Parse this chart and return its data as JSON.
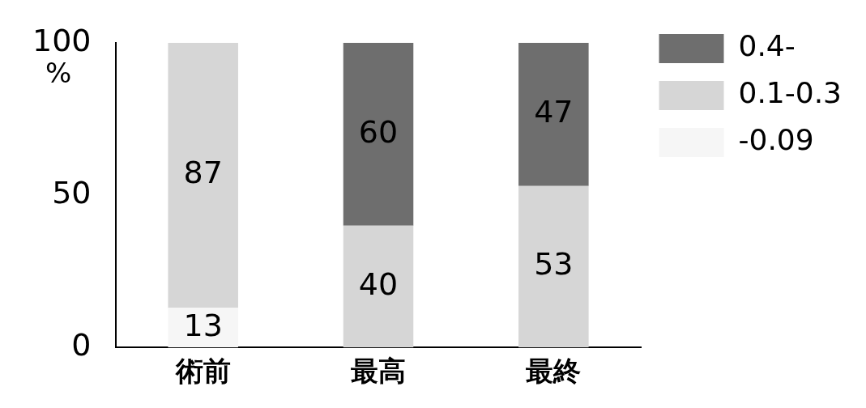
{
  "chart_data": {
    "type": "bar",
    "stacked": true,
    "categories": [
      "術前",
      "最高",
      "最終"
    ],
    "ylabel": "%",
    "ylim": [
      0,
      100
    ],
    "yticks": [
      0,
      50,
      100
    ],
    "grid": false,
    "legend": "right",
    "series": [
      {
        "name": "-0.09",
        "color": "#f6f6f6",
        "values": [
          13,
          null,
          null
        ],
        "value_labels": [
          "13",
          null,
          null
        ]
      },
      {
        "name": "0.1-0.3",
        "color": "#d6d6d6",
        "values": [
          87,
          40,
          53
        ],
        "value_labels": [
          "87",
          "40",
          "53"
        ]
      },
      {
        "name": "0.4-",
        "color": "#6e6e6e",
        "values": [
          null,
          60,
          47
        ],
        "value_labels": [
          null,
          "60",
          "47"
        ]
      }
    ]
  }
}
